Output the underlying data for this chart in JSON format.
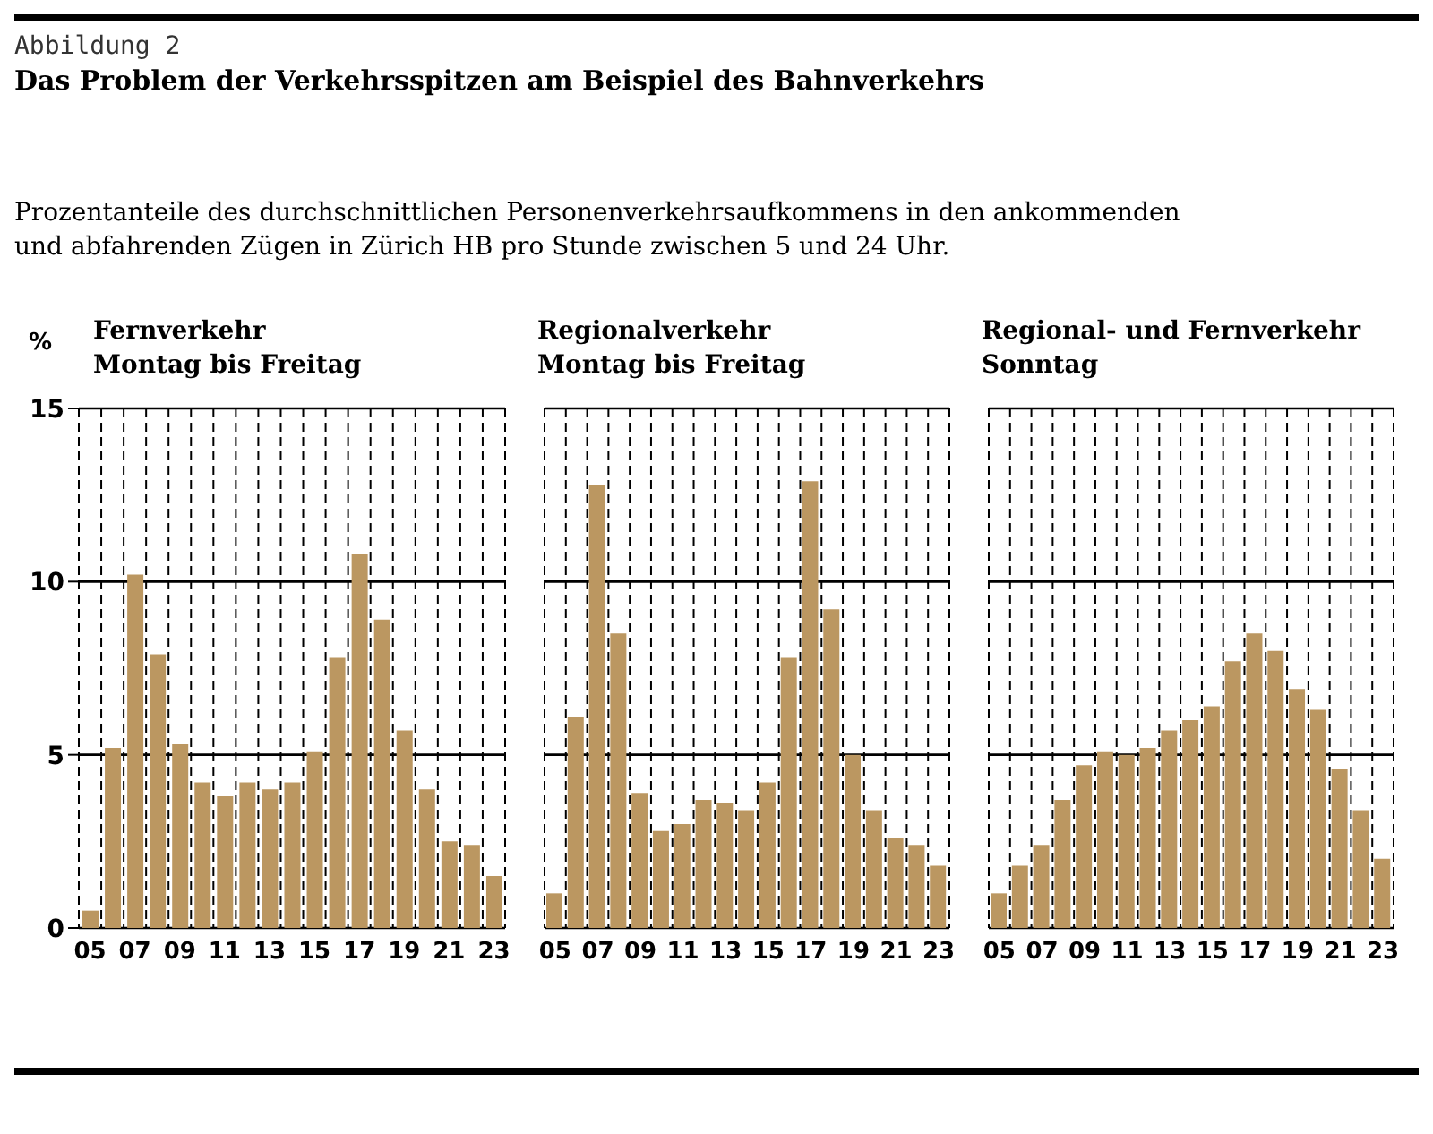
{
  "chart_data": [
    {
      "type": "bar",
      "title": "Fernverkehr",
      "subtitle": "Montag bis Freitag",
      "ylabel": "%",
      "annotations": [
        "Abbildung 2",
        "Das Problem der Verkehrsspitzen am Beispiel des Bahnverkehrs",
        "Prozentanteile des durchschnittlichen Personenverkehrsaufkommens in den ankommenden und abfahrenden Zügen in Zürich HB pro Stunde zwischen 5 und 24 Uhr."
      ],
      "categories": [
        "05",
        null,
        "07",
        null,
        "09",
        null,
        "11",
        null,
        "13",
        null,
        "15",
        null,
        "17",
        null,
        "19",
        null,
        "21",
        null,
        "23"
      ],
      "values": [
        0.5,
        5.2,
        10.2,
        7.9,
        5.3,
        4.2,
        3.8,
        4.2,
        4.0,
        4.2,
        5.1,
        7.8,
        10.8,
        8.9,
        5.7,
        4.0,
        2.5,
        2.4,
        1.5
      ],
      "color": "#bb9761",
      "ylim": [
        0,
        15
      ],
      "yticks": [
        0,
        5,
        10,
        15
      ],
      "grid": true
    },
    {
      "type": "bar",
      "title": "Regionalverkehr",
      "subtitle": "Montag bis Freitag",
      "categories": [
        "05",
        null,
        "07",
        null,
        "09",
        null,
        "11",
        null,
        "13",
        null,
        "15",
        null,
        "17",
        null,
        "19",
        null,
        "21",
        null,
        "23"
      ],
      "values": [
        1.0,
        6.1,
        12.8,
        8.5,
        3.9,
        2.8,
        3.0,
        3.7,
        3.6,
        3.4,
        4.2,
        7.8,
        12.9,
        9.2,
        5.0,
        3.4,
        2.6,
        2.4,
        1.8
      ],
      "color": "#bb9761",
      "ylim": [
        0,
        15
      ],
      "yticks": [
        0,
        5,
        10,
        15
      ],
      "grid": true,
      "tick_labels": "x"
    },
    {
      "type": "bar",
      "title": "Regional- und Fernverkehr",
      "subtitle": "Sonntag",
      "categories": [
        "05",
        null,
        "07",
        null,
        "09",
        null,
        "11",
        null,
        "13",
        null,
        "15",
        null,
        "17",
        null,
        "19",
        null,
        "21",
        null,
        "23"
      ],
      "values": [
        1.0,
        1.8,
        2.4,
        3.7,
        4.7,
        5.1,
        5.0,
        5.2,
        5.7,
        6.0,
        6.4,
        7.7,
        8.5,
        8.0,
        6.9,
        6.3,
        4.6,
        3.4,
        2.0
      ],
      "color": "#bb9761",
      "ylim": [
        0,
        15
      ],
      "yticks": [
        0,
        5,
        10,
        15
      ],
      "grid": true,
      "tick_labels": "x"
    }
  ]
}
